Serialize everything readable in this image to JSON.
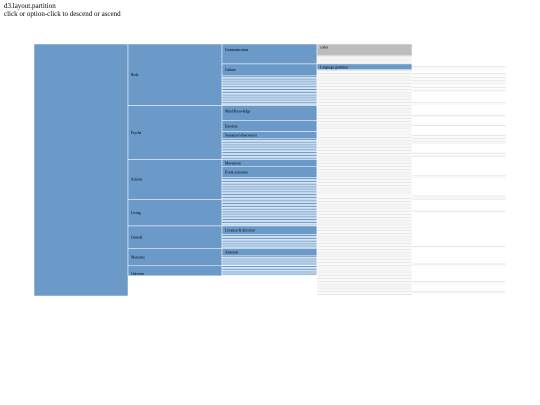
{
  "header": {
    "title": "d3.layout.partition",
    "instructions": "click or option-click to descend or ascend"
  },
  "colors": {
    "blue": "#6b9ac8",
    "blue_light": "#9fbfdf",
    "grey": "#bdbdbd",
    "grey_light": "#e6e6e6",
    "line": "#ffffff"
  },
  "partition": {
    "level0": [
      {
        "label": ""
      }
    ],
    "level1": [
      {
        "label": "Body",
        "h": 0.2445
      },
      {
        "label": "Psyche",
        "h": 0.2138
      },
      {
        "label": "Actions",
        "h": 0.1585
      },
      {
        "label": "Living",
        "h": 0.1052
      },
      {
        "label": "General",
        "h": 0.0902
      },
      {
        "label": "Measures",
        "h": 0.0679
      },
      {
        "label": "Universe",
        "h": 0.0399
      }
    ],
    "level2": [
      {
        "label": "Communication",
        "h": 0.0791
      },
      {
        "label": "Culture",
        "h": 0.0475
      },
      {
        "label": "",
        "h": 0.1179
      },
      {
        "label": "Mind/Knowledge",
        "h": 0.0598
      },
      {
        "label": "Emotion",
        "h": 0.0432
      },
      {
        "label": "Sensation/observation",
        "h": 0.0288
      },
      {
        "label": "",
        "h": 0.082
      },
      {
        "label": "Movement",
        "h": 0.0288
      },
      {
        "label": "Event outcomes",
        "h": 0.0432
      },
      {
        "label": "",
        "h": 0.0865
      },
      {
        "label": "",
        "h": 0.1052
      },
      {
        "label": "Location & direction",
        "h": 0.0345
      },
      {
        "label": "",
        "h": 0.0557
      },
      {
        "label": "Amounts",
        "h": 0.0288
      },
      {
        "label": "",
        "h": 0.0391
      },
      {
        "label": "",
        "h": 0.0399
      }
    ],
    "level3": [
      {
        "label": "codes",
        "h": 0.0475
      },
      {
        "label": "",
        "h": 0.0316
      },
      {
        "label": "Language grammar",
        "h": 0.023
      }
    ]
  }
}
